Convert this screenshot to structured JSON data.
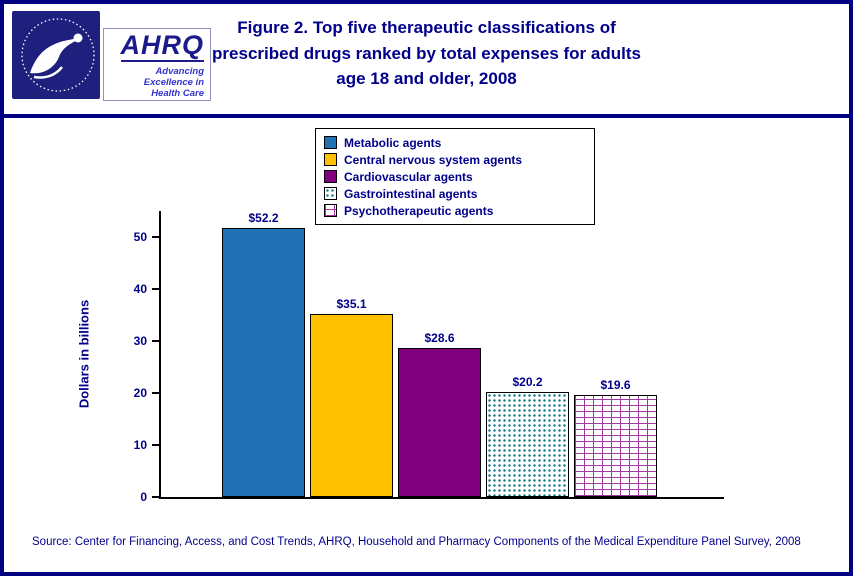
{
  "header": {
    "logos": {
      "hhs_icon": "hhs-seal-logo",
      "ahrq_name": "AHRQ",
      "ahrq_tagline": "Advancing\nExcellence in\nHealth Care"
    }
  },
  "chart_data": {
    "type": "bar",
    "title": "Figure 2. Top five therapeutic classifications of prescribed drugs ranked by total expenses for adults age 18 and older, 2008",
    "ylabel": "Dollars in billions",
    "xlabel": "",
    "ylim": [
      0,
      55
    ],
    "yticks": [
      0,
      10,
      20,
      30,
      40,
      50
    ],
    "categories": [
      "Metabolic agents",
      "Central nervous system agents",
      "Cardiovascular agents",
      "Gastrointestinal agents",
      "Psychotherapeutic agents"
    ],
    "values": [
      52.2,
      35.1,
      28.6,
      20.2,
      19.6
    ],
    "value_labels": [
      "$52.2",
      "$35.1",
      "$28.6",
      "$20.2",
      "$19.6"
    ],
    "bar_colors": [
      "#2171B5",
      "#FFC000",
      "#800080",
      "pattern:dots",
      "pattern:bricks"
    ],
    "pattern_colors": {
      "dots": "#1E7F8C",
      "bricks": "#A23AA0"
    },
    "legend_position": "top-center",
    "grid": false
  },
  "colors": {
    "page_border": "#000080",
    "text_navy": "#00008B"
  },
  "source": "Source: Center for Financing, Access, and Cost Trends, AHRQ, Household and Pharmacy Components of the Medical Expenditure Panel Survey, 2008"
}
